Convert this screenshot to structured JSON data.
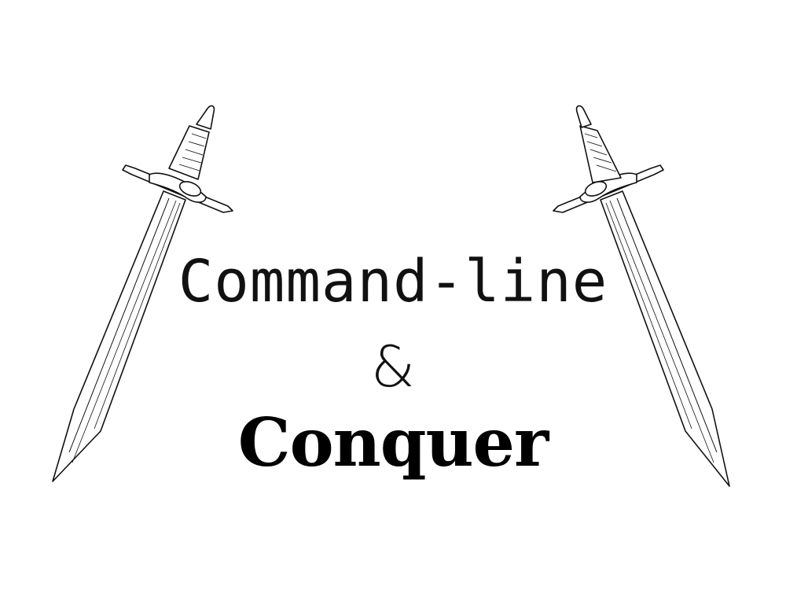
{
  "title": {
    "line1": "Command-line",
    "ampersand": "&",
    "line2": "Conquer"
  },
  "illustrations": {
    "left": "sword-icon",
    "right": "sword-icon"
  },
  "colors": {
    "ink": "#111111",
    "background": "#ffffff"
  }
}
